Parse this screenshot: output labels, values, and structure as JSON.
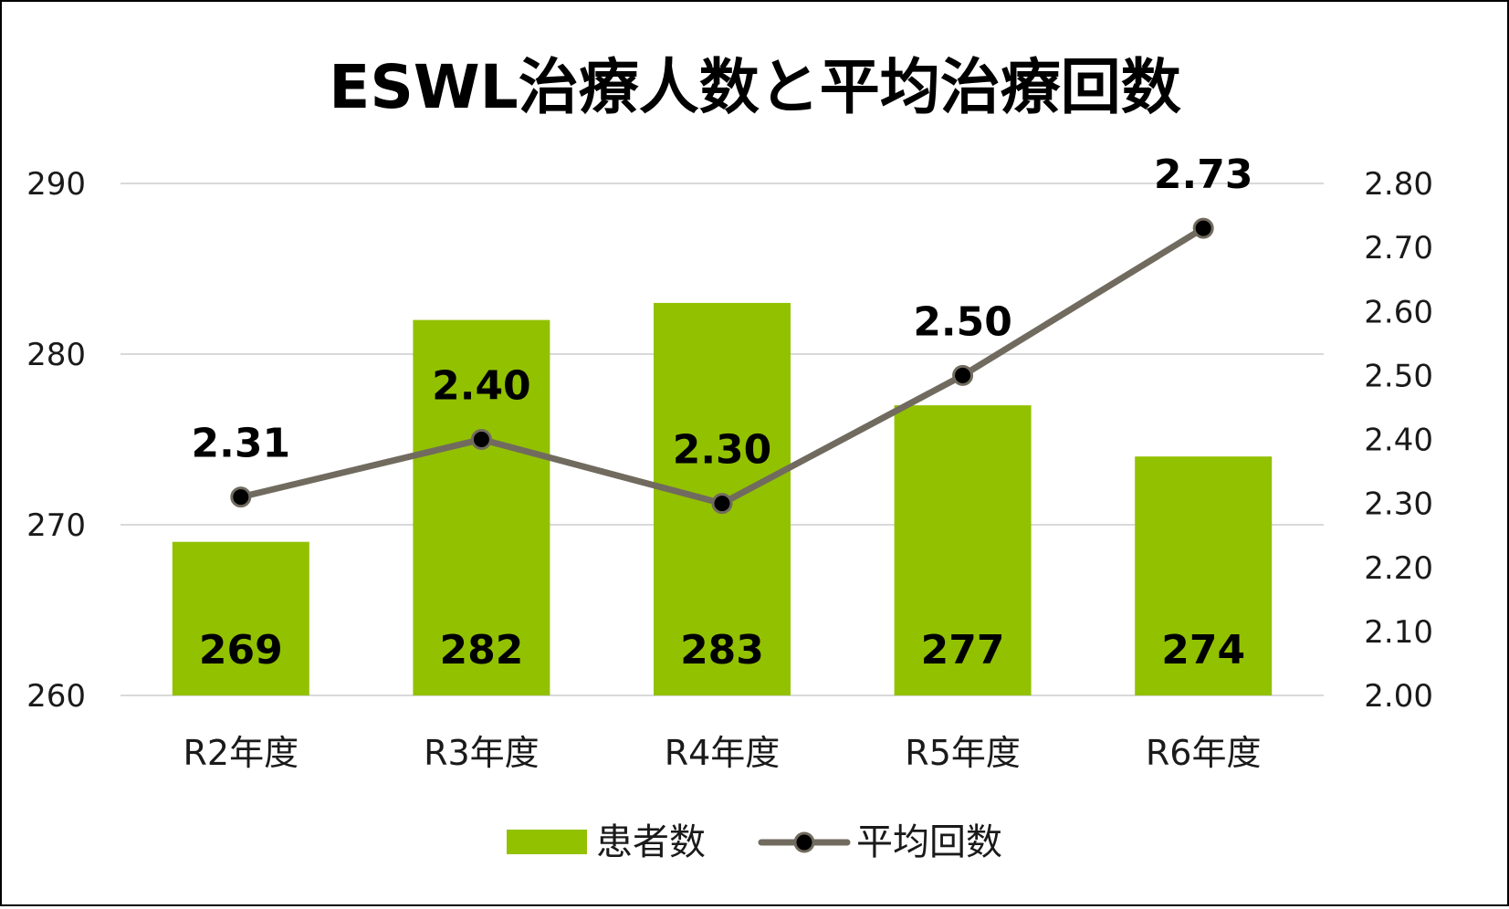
{
  "chart_data": {
    "type": "bar+line",
    "title": "ESWL治療人数と平均治療回数",
    "categories": [
      "R2年度",
      "R3年度",
      "R4年度",
      "R5年度",
      "R6年度"
    ],
    "series": [
      {
        "name": "患者数",
        "type": "bar",
        "axis": "left",
        "values": [
          269,
          282,
          283,
          277,
          274
        ],
        "labels": [
          "269",
          "282",
          "283",
          "277",
          "274"
        ],
        "color": "#92c100"
      },
      {
        "name": "平均回数",
        "type": "line",
        "axis": "right",
        "values": [
          2.31,
          2.4,
          2.3,
          2.5,
          2.73
        ],
        "labels": [
          "2.31",
          "2.40",
          "2.30",
          "2.50",
          "2.73"
        ],
        "color": "#716b5f",
        "marker_color": "#000000"
      }
    ],
    "y_left": {
      "min": 260,
      "max": 290,
      "ticks": [
        260,
        270,
        280,
        290
      ],
      "tick_labels": [
        "260",
        "270",
        "280",
        "290"
      ]
    },
    "y_right": {
      "min": 2.0,
      "max": 2.8,
      "ticks": [
        2.0,
        2.1,
        2.2,
        2.3,
        2.4,
        2.5,
        2.6,
        2.7,
        2.8
      ],
      "tick_labels": [
        "2.00",
        "2.10",
        "2.20",
        "2.30",
        "2.40",
        "2.50",
        "2.60",
        "2.70",
        "2.80"
      ]
    },
    "grid": true,
    "gridline_color": "#d9d9d9",
    "legend_position": "bottom"
  }
}
